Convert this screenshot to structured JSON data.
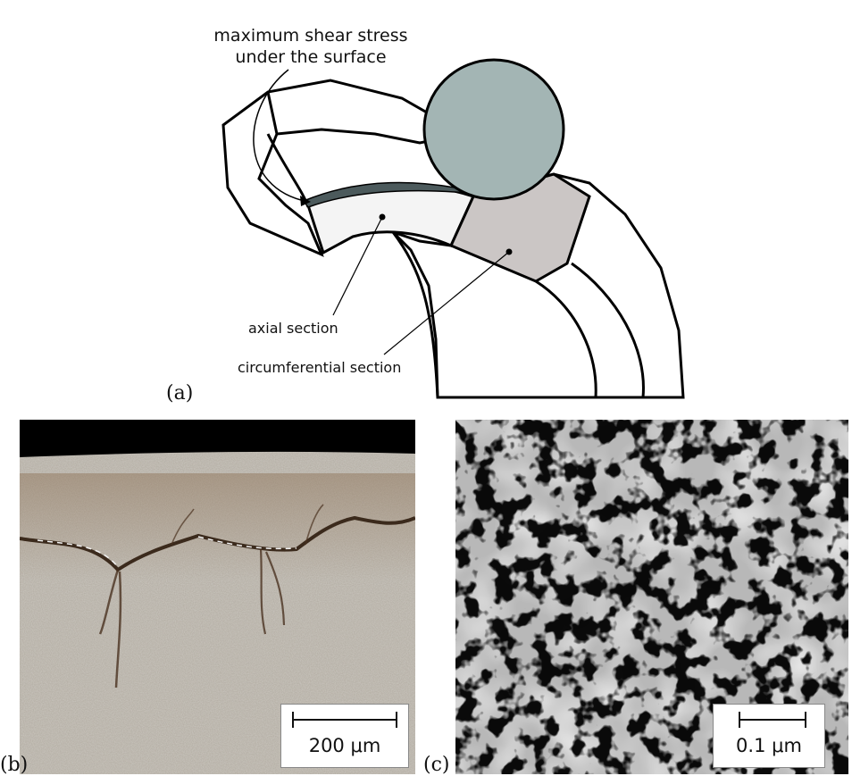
{
  "panel_a": {
    "label": "(a)",
    "annotation_top_line1": "maximum shear stress",
    "annotation_top_line2": "under the surface",
    "label_axial": "axial section",
    "label_circumferential": "circumferential section",
    "colors": {
      "ball": "#a3b5b4",
      "axial_face": "#f4f4f4",
      "circumferential_face": "#cbc6c5",
      "shear_band": "#4c5a5c"
    }
  },
  "panel_b": {
    "label": "(b)",
    "scale_text": "200 μm"
  },
  "panel_c": {
    "label": "(c)",
    "scale_text": "0.1 μm"
  }
}
